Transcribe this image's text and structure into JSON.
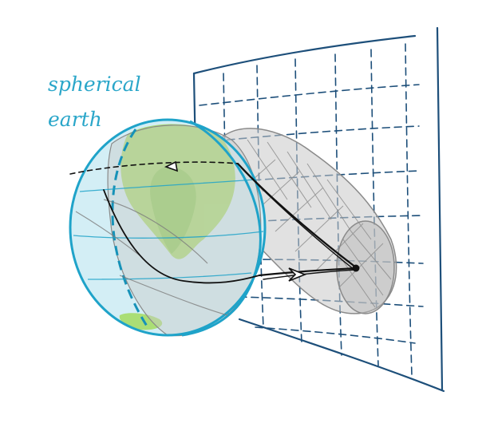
{
  "label": {
    "line1": "spherical",
    "line2": "earth"
  },
  "colors": {
    "ink": "#1d4f7a",
    "globe_outline": "#1fa3c9",
    "ocean": "#d3eef5",
    "land": "#a8dc6e",
    "shadow": "#c9c9c9",
    "shadow_stroke": "#8a8a8a",
    "path": "#111111"
  }
}
